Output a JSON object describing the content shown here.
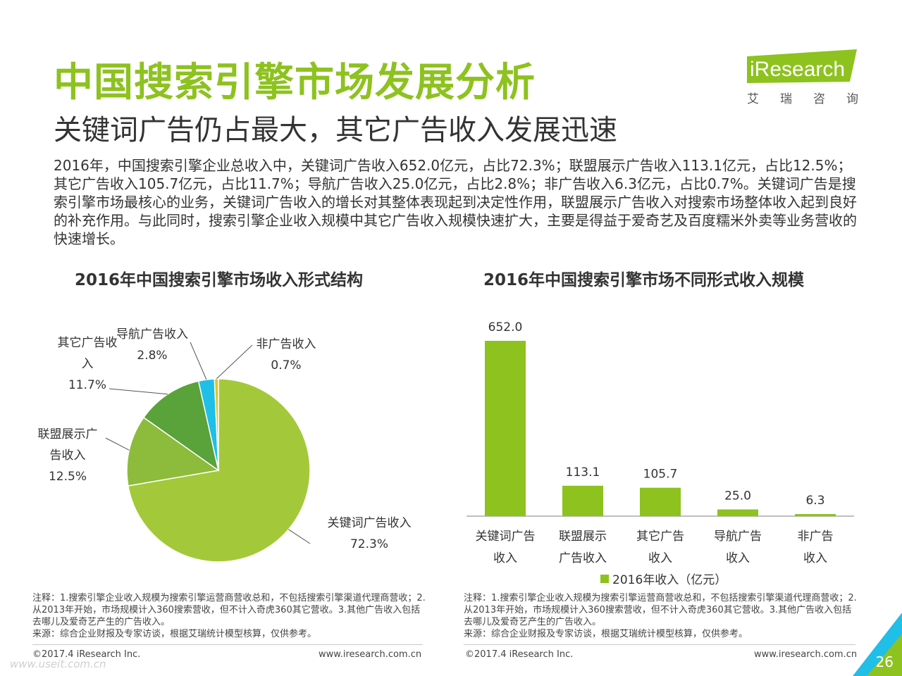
{
  "header": {
    "title": "中国搜索引擎市场发展分析",
    "subtitle": "关键词广告仍占最大，其它广告收入发展迅速",
    "intro": "2016年，中国搜索引擎企业总收入中，关键词广告收入652.0亿元，占比72.3%；联盟展示广告收入113.1亿元，占比12.5%；其它广告收入105.7亿元，占比11.7%；导航广告收入25.0亿元，占比2.8%；非广告收入6.3亿元，占比0.7%。关键词广告是搜索引擎市场最核心的业务，关键词广告收入的增长对其整体表现起到决定性作用，联盟展示广告收入对搜索市场整体收入起到良好的补充作用。与此同时，搜索引擎企业收入规模中其它广告收入规模快速扩大，主要是得益于爱奇艺及百度糯米外卖等业务营收的快速增长。"
  },
  "logo": {
    "brand": "iResearch",
    "cn": "艾瑞咨询"
  },
  "colors": {
    "accent": "#8dc21f",
    "slice_keyword": "#a3c93a",
    "slice_alliance": "#8dbb3c",
    "slice_other": "#5aa23a",
    "slice_nav": "#1fbfe8",
    "slice_nonad": "#e8c21f",
    "bar": "#8dc21f"
  },
  "chart_data": [
    {
      "type": "pie",
      "title": "2016年中国搜索引擎市场收入形式结构",
      "slices": [
        {
          "label": "关键词广告收入",
          "value": 72.3,
          "display": "72.3%"
        },
        {
          "label": "联盟展示广告收入",
          "value": 12.5,
          "display": "12.5%"
        },
        {
          "label": "其它广告收入",
          "value": 11.7,
          "display": "11.7%"
        },
        {
          "label": "导航广告收入",
          "value": 2.8,
          "display": "2.8%"
        },
        {
          "label": "非广告收入",
          "value": 0.7,
          "display": "0.7%"
        }
      ]
    },
    {
      "type": "bar",
      "title": "2016年中国搜索引擎市场不同形式收入规模",
      "categories": [
        "关键词广告收入",
        "联盟展示广告收入",
        "其它广告收入",
        "导航广告收入",
        "非广告收入"
      ],
      "category_lines": [
        [
          "关键词广告",
          "收入"
        ],
        [
          "联盟展示",
          "广告收入"
        ],
        [
          "其它广告",
          "收入"
        ],
        [
          "导航广告",
          "收入"
        ],
        [
          "非广告",
          "收入"
        ]
      ],
      "series": [
        {
          "name": "2016年收入（亿元）",
          "values": [
            652.0,
            113.1,
            105.7,
            25.0,
            6.3
          ]
        }
      ],
      "value_labels": [
        "652.0",
        "113.1",
        "105.7",
        "25.0",
        "6.3"
      ],
      "legend": "bottom"
    }
  ],
  "notes": {
    "left": "注释：1.搜索引擎企业收入规模为搜索引擎运营商营收总和，不包括搜索引擎渠道代理商营收；2.从2013年开始，市场规模计入360搜索营收，但不计入奇虎360其它营收。3.其他广告收入包括去哪儿及爱奇艺产生的广告收入。",
    "left_source": "来源：综合企业财报及专家访谈，根据艾瑞统计模型核算，仅供参考。",
    "right": "注释：1.搜索引擎企业收入规模为搜索引擎运营商营收总和，不包括搜索引擎渠道代理商营收；2.从2013年开始，市场规模计入360搜索营收，但不计入奇虎360其它营收。3.其他广告收入包括去哪儿及爱奇艺产生的广告收入。",
    "right_source": "来源：综合企业财报及专家访谈，根据艾瑞统计模型核算，仅供参考。"
  },
  "footer": {
    "copyright_left": "©2017.4 iResearch Inc.",
    "url_left": "www.iresearch.com.cn",
    "copyright_right": "©2017.4 iResearch Inc.",
    "url_right": "www.iresearch.com.cn",
    "page": "26",
    "watermark": "www.useit.com.cn"
  }
}
